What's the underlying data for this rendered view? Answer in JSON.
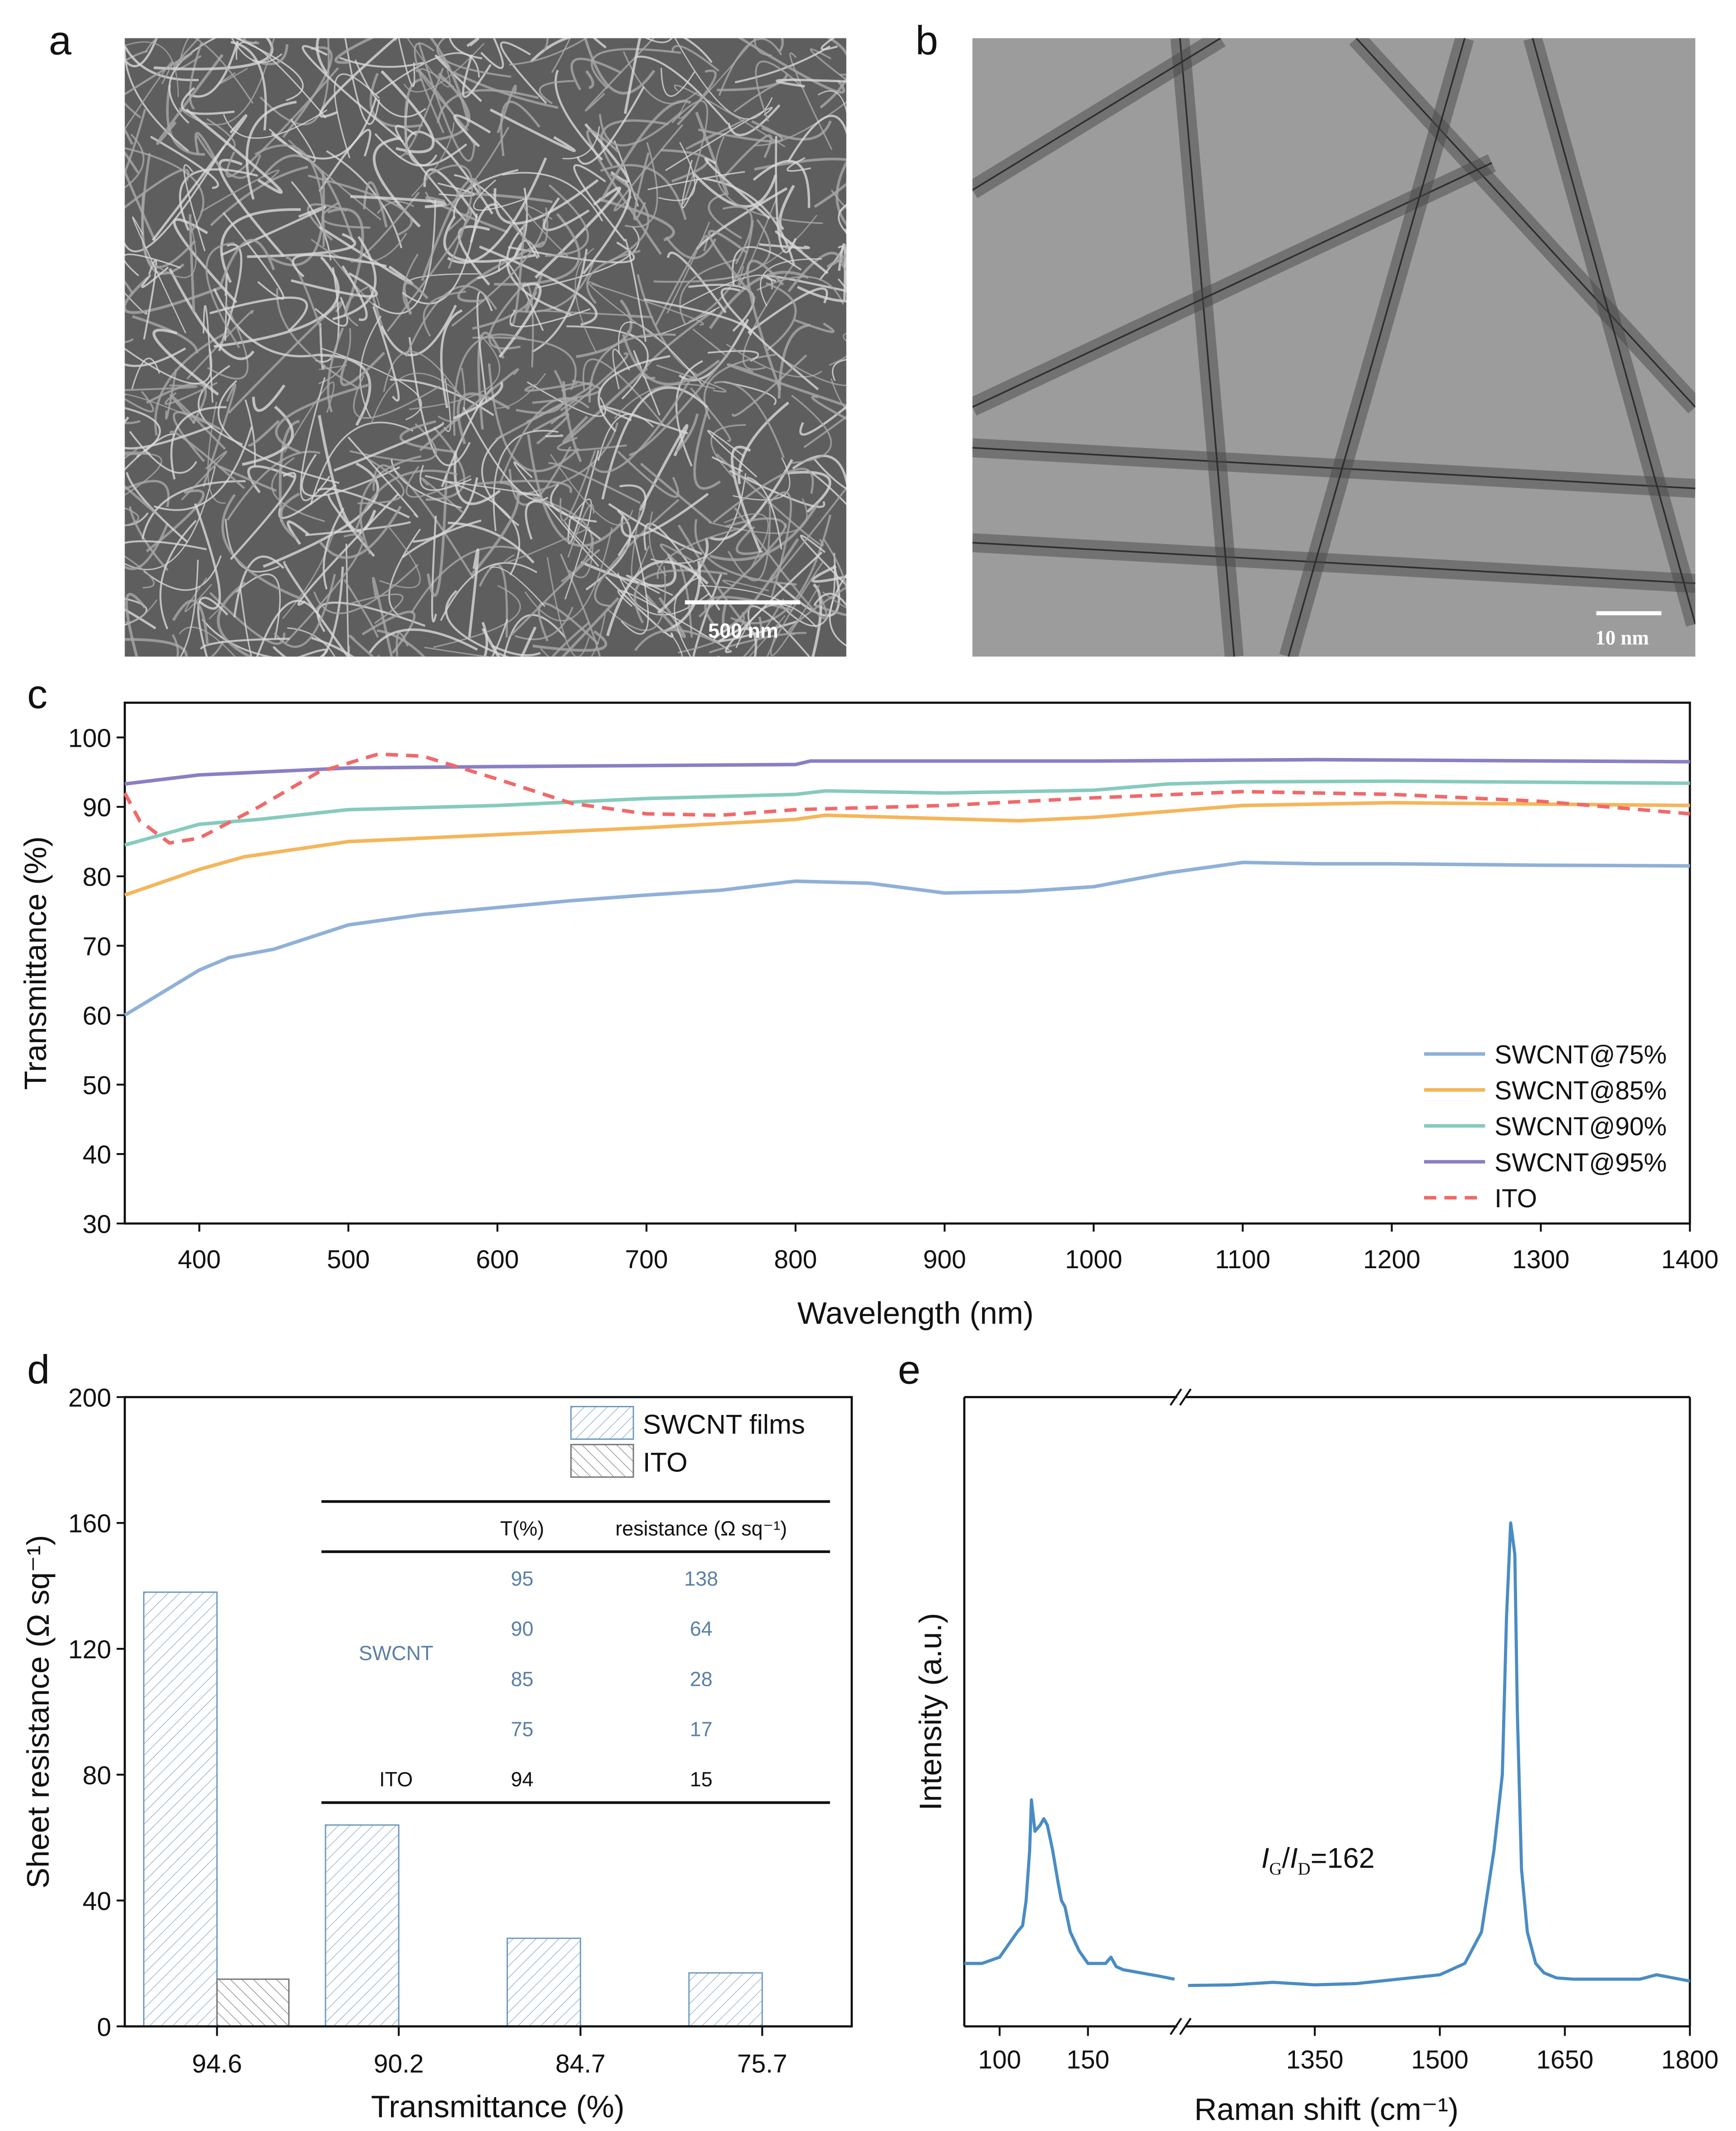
{
  "panels": {
    "a": "a",
    "b": "b",
    "c": "c",
    "d": "d",
    "e": "e"
  },
  "images": {
    "a": {
      "kind": "SEM micrograph of SWCNT network",
      "scale_bar": "500 nm",
      "background": "#6e6e6e"
    },
    "b": {
      "kind": "TEM micrograph of SWCNT bundles",
      "scale_bar": "10 nm",
      "background": "#9a9a9a"
    }
  },
  "chart_data": [
    {
      "panel": "c",
      "type": "line",
      "xlabel": "Wavelength (nm)",
      "ylabel": "Transmittance (%)",
      "xlim": [
        350,
        1400
      ],
      "ylim": [
        30,
        105
      ],
      "xticks": [
        400,
        500,
        600,
        700,
        800,
        900,
        1000,
        1100,
        1200,
        1300,
        1400
      ],
      "yticks": [
        30,
        40,
        50,
        60,
        70,
        80,
        90,
        100
      ],
      "legend": "bottom-right",
      "grid": false,
      "series": [
        {
          "name": "SWCNT@75%",
          "color": "#8fb0d8",
          "dash": false,
          "x": [
            350,
            400,
            420,
            450,
            500,
            550,
            600,
            650,
            700,
            750,
            800,
            850,
            900,
            950,
            1000,
            1050,
            1100,
            1150,
            1200,
            1300,
            1400
          ],
          "y": [
            60,
            66.5,
            68.3,
            69.5,
            73,
            74.5,
            75.5,
            76.5,
            77.3,
            78,
            79.3,
            79,
            77.6,
            77.8,
            78.5,
            80.5,
            82,
            81.8,
            81.8,
            81.6,
            81.5
          ]
        },
        {
          "name": "SWCNT@85%",
          "color": "#f5b55a",
          "dash": false,
          "x": [
            350,
            400,
            430,
            500,
            600,
            700,
            800,
            820,
            900,
            950,
            1000,
            1100,
            1200,
            1300,
            1400
          ],
          "y": [
            77.3,
            81,
            82.8,
            85,
            86,
            87,
            88.2,
            88.8,
            88.3,
            88,
            88.5,
            90.2,
            90.6,
            90.4,
            90.2
          ]
        },
        {
          "name": "SWCNT@90%",
          "color": "#86cbbd",
          "dash": false,
          "x": [
            350,
            400,
            440,
            500,
            600,
            700,
            800,
            820,
            900,
            1000,
            1050,
            1100,
            1200,
            1400
          ],
          "y": [
            84.5,
            87.5,
            88.2,
            89.6,
            90.2,
            91.2,
            91.8,
            92.3,
            92,
            92.4,
            93.3,
            93.6,
            93.7,
            93.4
          ]
        },
        {
          "name": "SWCNT@95%",
          "color": "#8a7fc4",
          "dash": false,
          "x": [
            350,
            400,
            500,
            600,
            800,
            810,
            1000,
            1150,
            1400
          ],
          "y": [
            93.3,
            94.6,
            95.6,
            95.8,
            96.1,
            96.6,
            96.6,
            96.8,
            96.5
          ]
        },
        {
          "name": "ITO",
          "color": "#f0696a",
          "dash": true,
          "x": [
            350,
            360,
            380,
            400,
            440,
            480,
            520,
            550,
            600,
            650,
            700,
            750,
            800,
            900,
            1000,
            1100,
            1200,
            1300,
            1400
          ],
          "y": [
            92,
            88,
            84.8,
            85.5,
            90,
            95,
            97.6,
            97.3,
            94,
            90.5,
            89,
            88.8,
            89.6,
            90.2,
            91.3,
            92.2,
            91.8,
            90.8,
            89
          ]
        }
      ]
    },
    {
      "panel": "d",
      "type": "bar",
      "xlabel": "Transmittance (%)",
      "ylabel": "Sheet resistance (Ω sq⁻¹)",
      "ylim": [
        0,
        200
      ],
      "yticks": [
        0,
        40,
        80,
        120,
        160,
        200
      ],
      "categories": [
        "94.6",
        "90.2",
        "84.7",
        "75.7"
      ],
      "series": [
        {
          "name": "SWCNT films",
          "color": "#6f9ac0",
          "values": [
            138,
            64,
            28,
            17
          ]
        },
        {
          "name": "ITO",
          "color": "#777777",
          "values": [
            15,
            null,
            null,
            null
          ]
        }
      ],
      "legend": "top-right",
      "inset_table": {
        "headers": [
          "",
          "T(%)",
          "resistance (Ω sq⁻¹)"
        ],
        "rows": [
          {
            "group": "SWCNT",
            "t": "95",
            "r": "138"
          },
          {
            "group": "",
            "t": "90",
            "r": "64"
          },
          {
            "group": "",
            "t": "85",
            "r": "28"
          },
          {
            "group": "",
            "t": "75",
            "r": "17"
          },
          {
            "group": "ITO",
            "t": "94",
            "r": "15"
          }
        ],
        "swcnt_color": "#5b7fa6"
      }
    },
    {
      "panel": "e",
      "type": "line",
      "xlabel": "Raman shift (cm⁻¹)",
      "ylabel": "Intensity (a.u.)",
      "broken_axis": true,
      "segments": [
        {
          "xlim": [
            80,
            199
          ],
          "xticks": [
            100,
            150
          ]
        },
        {
          "xlim": [
            1198,
            1800
          ],
          "xticks": [
            1350,
            1500,
            1650,
            1800
          ]
        }
      ],
      "annotation": "IG/ID=162",
      "color": "#4a8cc4",
      "series": [
        {
          "x": [
            80,
            90,
            100,
            105,
            110,
            113,
            115,
            117,
            118,
            120,
            123,
            125,
            127,
            130,
            133,
            135,
            137,
            140,
            145,
            150,
            155,
            160,
            163,
            166,
            170,
            180,
            190,
            199
          ],
          "y": [
            0.1,
            0.1,
            0.11,
            0.13,
            0.15,
            0.16,
            0.2,
            0.28,
            0.36,
            0.31,
            0.32,
            0.33,
            0.32,
            0.28,
            0.23,
            0.2,
            0.19,
            0.15,
            0.12,
            0.1,
            0.1,
            0.1,
            0.11,
            0.095,
            0.09,
            0.085,
            0.08,
            0.075
          ]
        },
        {
          "x": [
            1198,
            1250,
            1300,
            1350,
            1400,
            1450,
            1500,
            1530,
            1550,
            1565,
            1575,
            1580,
            1585,
            1590,
            1593,
            1598,
            1605,
            1615,
            1625,
            1640,
            1660,
            1700,
            1740,
            1760,
            1800
          ],
          "y": [
            0.065,
            0.066,
            0.07,
            0.066,
            0.068,
            0.075,
            0.082,
            0.1,
            0.15,
            0.28,
            0.4,
            0.65,
            0.8,
            0.75,
            0.5,
            0.25,
            0.15,
            0.1,
            0.085,
            0.077,
            0.075,
            0.075,
            0.075,
            0.082,
            0.072
          ]
        }
      ]
    }
  ]
}
